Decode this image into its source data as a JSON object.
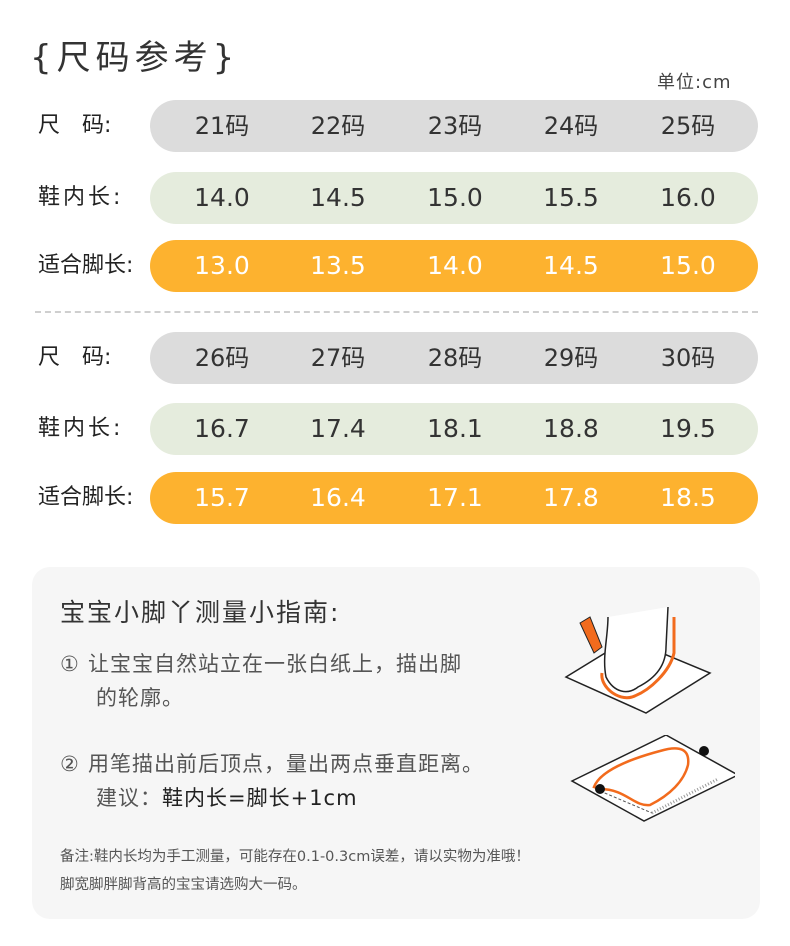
{
  "title": "{尺码参考}",
  "unit": "单位:cm",
  "tables": [
    {
      "size_label": "尺　码:",
      "sizes": [
        "21码",
        "22码",
        "23码",
        "24码",
        "25码"
      ],
      "inner_label": "鞋内长:",
      "inner": [
        "14.0",
        "14.5",
        "15.0",
        "15.5",
        "16.0"
      ],
      "foot_label": "适合脚长:",
      "foot": [
        "13.0",
        "13.5",
        "14.0",
        "14.5",
        "15.0"
      ]
    },
    {
      "size_label": "尺　码:",
      "sizes": [
        "26码",
        "27码",
        "28码",
        "29码",
        "30码"
      ],
      "inner_label": "鞋内长:",
      "inner": [
        "16.7",
        "17.4",
        "18.1",
        "18.8",
        "19.5"
      ],
      "foot_label": "适合脚长:",
      "foot": [
        "15.7",
        "16.4",
        "17.1",
        "17.8",
        "18.5"
      ]
    }
  ],
  "colors": {
    "size_row": "#dcdcdc",
    "inner_row": "#e5ecdd",
    "foot_row": "#fdb22f"
  },
  "guide": {
    "title": "宝宝小脚丫测量小指南:",
    "step1_num": "①",
    "step1_line1": "让宝宝自然站立在一张白纸上，描出脚",
    "step1_line2": "的轮廓。",
    "step2_num": "②",
    "step2_line1": "用笔描出前后顶点，量出两点垂直距离。",
    "step2_prefix": "建议：",
    "step2_formula": "鞋内长=脚长+1cm",
    "note1": "备注:鞋内长均为手工测量，可能存在0.1-0.3cm误差，请以实物为准哦！",
    "note2": "脚宽脚胖脚背高的宝宝请选购大一码。"
  }
}
